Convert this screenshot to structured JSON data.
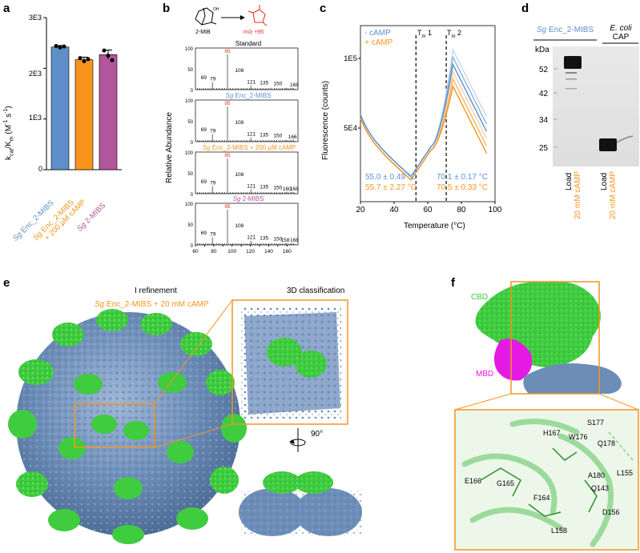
{
  "panels": {
    "a": "a",
    "b": "b",
    "c": "c",
    "d": "d",
    "e": "e",
    "f": "f"
  },
  "panel_a": {
    "ylabel_main": "k",
    "ylabel_sub1": "cat",
    "ylabel_mid": "/K",
    "ylabel_sub2": "m",
    "ylabel_end": " (M",
    "ylabel_sup": "-1",
    "ylabel_tail": " s",
    "ylabel_sup2": "-1",
    "ylabel_close": ")",
    "yticks": [
      "0",
      "1E3",
      "2E3",
      "3E3"
    ],
    "bars": [
      {
        "name_sp": "Sg",
        "name": " Enc_2-MIBS",
        "name2": "",
        "color": "#5f8fc8",
        "label_color": "#5b8fd0"
      },
      {
        "name_sp": "Sg",
        "name": " Enc_2-MIBS",
        "name2": "+ 200 µM cAMP",
        "color": "#f7941d",
        "label_color": "#f7941d"
      },
      {
        "name_sp": "Sg",
        "name": " 2-MIBS",
        "name2": "",
        "color": "#b1569b",
        "label_color": "#b1569b"
      }
    ],
    "colors": {
      "enc": "#5f8fc8",
      "camp": "#f7941d",
      "mibs": "#b1569b"
    }
  },
  "chart_data": [
    {
      "type": "bar",
      "categories": [
        "Sg Enc_2-MIBS",
        "Sg Enc_2-MIBS + 200 µM cAMP",
        "Sg 2-MIBS"
      ],
      "values": [
        2420,
        2170,
        2270
      ],
      "errors": [
        30,
        50,
        90
      ],
      "points": [
        [
          2440,
          2410,
          2430
        ],
        [
          2200,
          2140,
          2180
        ],
        [
          2350,
          2250,
          2160
        ]
      ],
      "ylabel": "kcat/Km (M-1 s-1)",
      "ylim": [
        0,
        3000
      ]
    },
    {
      "type": "line",
      "xlabel": "Temperature (°C)",
      "ylabel": "Fluorescence (counts)",
      "xlim": [
        20,
        100
      ],
      "yticks": [
        "5E4",
        "1E5"
      ],
      "series": [
        {
          "name": "- cAMP",
          "color": "#5b8fd0"
        },
        {
          "name": "+ cAMP",
          "color": "#f7941d"
        }
      ],
      "tm1": 53,
      "tm2": 71
    }
  ],
  "panel_b": {
    "reaction_substrate": "2-MIB",
    "reaction_product": "m/z +95",
    "oh_label": "OH",
    "ylabel": "Relative Abundance",
    "xticks": [
      "60",
      "70",
      "80",
      "90",
      "100",
      "110",
      "120",
      "130",
      "140",
      "150",
      "160"
    ],
    "spectra": [
      {
        "title": "Standard",
        "title_sp": "",
        "color": "#000",
        "peaks": [
          "69",
          "79",
          "95",
          "108",
          "121",
          "135",
          "150",
          "168"
        ]
      },
      {
        "title": " Enc_2-MIBS",
        "title_sp": "Sg",
        "color": "#5b8fd0",
        "peaks": [
          "69",
          "79",
          "95",
          "108",
          "121",
          "135",
          "150",
          "166"
        ]
      },
      {
        "title": " Enc_2-MIBS + 200 µM cAMP",
        "title_sp": "Sg",
        "color": "#f7941d",
        "peaks": [
          "69",
          "79",
          "95",
          "108",
          "121",
          "135",
          "150",
          "160",
          "168"
        ]
      },
      {
        "title": " 2-MIBS",
        "title_sp": "Sg",
        "color": "#b1569b",
        "peaks": [
          "69",
          "79",
          "95",
          "108",
          "121",
          "135",
          "150",
          "158",
          "168"
        ]
      }
    ],
    "y100": "100",
    "y50": "50",
    "y0": "0"
  },
  "panel_c": {
    "legend_minus": "- cAMP",
    "legend_plus": "+ cAMP",
    "tm1": "T",
    "tm1_sub": "m",
    "tm1_n": " 1",
    "tm2": "T",
    "tm2_sub": "m",
    "tm2_n": " 2",
    "tm1_blue": "55.0 ± 0.49 °C",
    "tm1_orange": "55.7 ± 2.27 °C",
    "tm2_blue": "70.1 ± 0.17 °C",
    "tm2_orange": "70.5 ± 0.33 °C",
    "ylabel": "Fluorescence (counts)",
    "xlabel": "Temperature (°C)",
    "xticks": [
      "20",
      "40",
      "60",
      "80",
      "100"
    ],
    "yticks": [
      "5E4",
      "1E5"
    ]
  },
  "panel_d": {
    "header_sp": "Sg",
    "header_left": " Enc_2-MIBS",
    "header_right_sp": "E. coli",
    "header_right": "CAP",
    "kda": "kDa",
    "markers": [
      "52",
      "42",
      "34",
      "25"
    ],
    "lane_labels": [
      "Load",
      "20 mM cAMP",
      "Load",
      "20 mM cAMP"
    ]
  },
  "panel_e": {
    "left_title": "I refinement",
    "left_sub_sp": "Sg",
    "left_sub": " Enc_2-MIBS + 20 mM cAMP",
    "right_title": "3D classification",
    "rotation": "90°"
  },
  "panel_f": {
    "cbd": "CBD",
    "mbd": "MBD",
    "residues": [
      "H167",
      "W176",
      "S177",
      "Q178",
      "E166",
      "G165",
      "A180",
      "Q143",
      "L155",
      "F164",
      "D156",
      "L158"
    ]
  }
}
